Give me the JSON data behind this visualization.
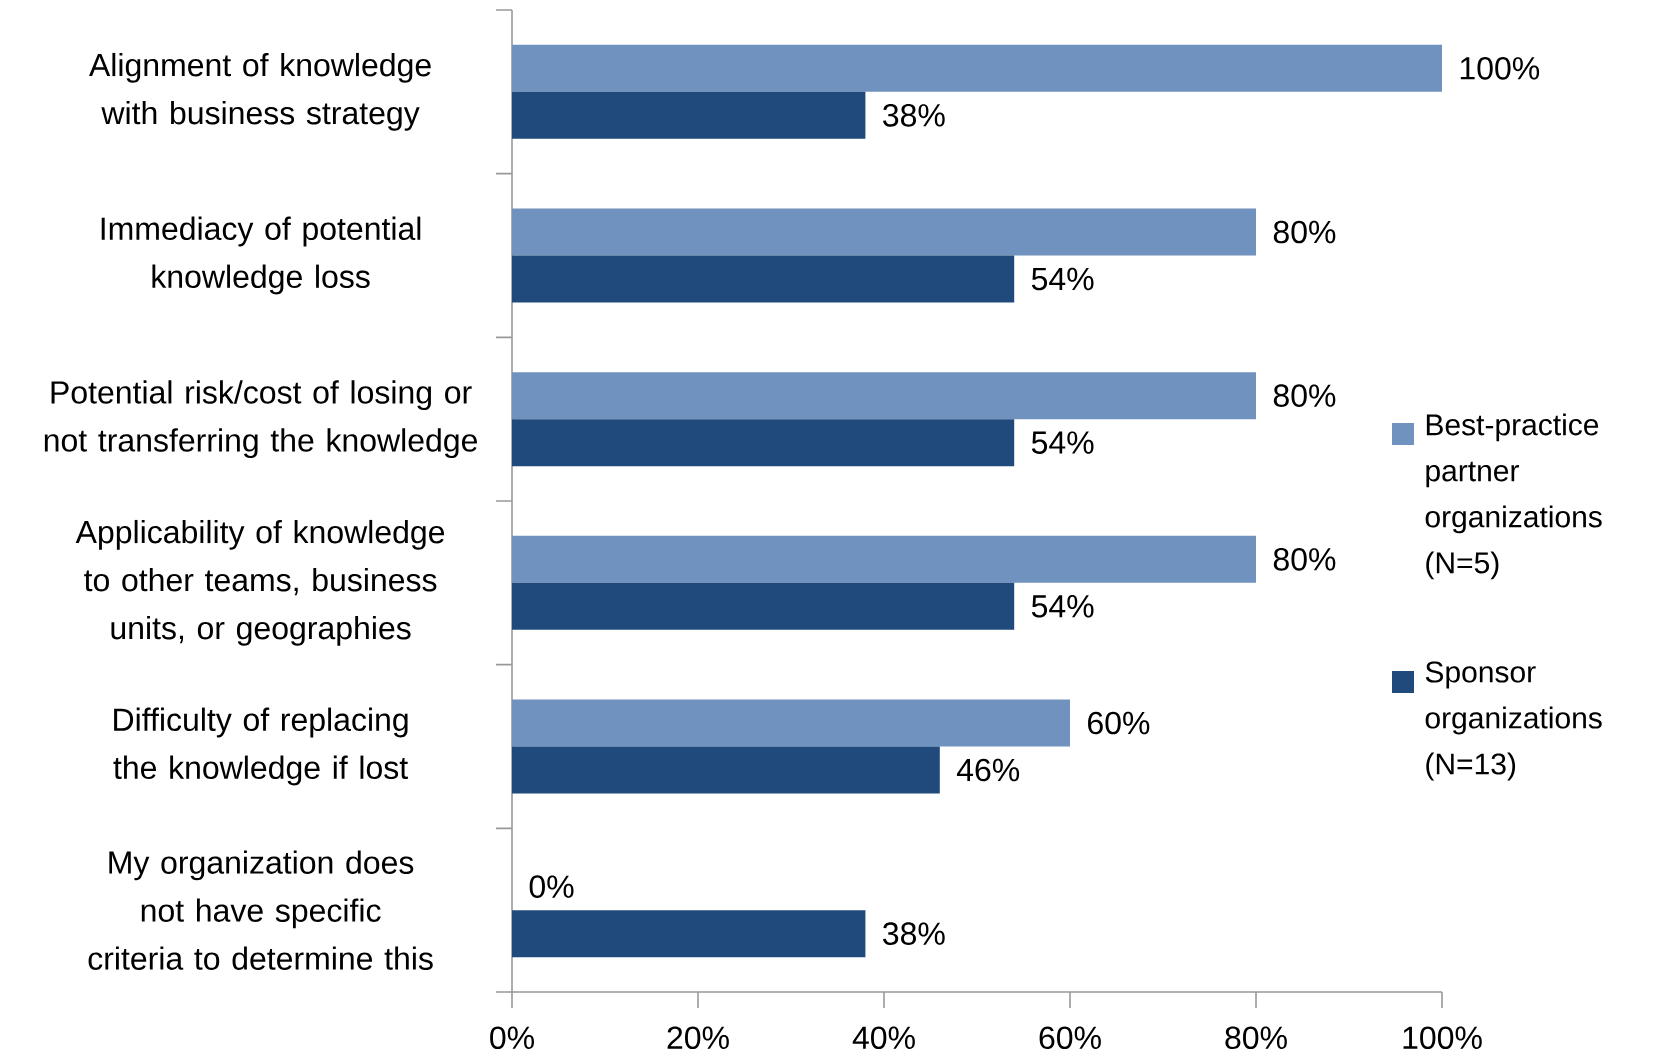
{
  "chart_data": {
    "type": "bar",
    "orientation": "horizontal",
    "categories": [
      "Alignment of knowledge with business strategy",
      "Immediacy of potential knowledge loss",
      "Potential risk/cost of losing or not transferring the knowledge",
      "Applicability of knowledge to other teams, business units, or geographies",
      "Difficulty of replacing the knowledge if lost",
      "My organization does not have specific criteria to determine this"
    ],
    "series": [
      {
        "name": "Best-practice partner organizations (N=5)",
        "color": "#7092be",
        "values": [
          100,
          80,
          80,
          80,
          60,
          0
        ],
        "value_labels": [
          "100%",
          "80%",
          "80%",
          "80%",
          "60%",
          "0%"
        ]
      },
      {
        "name": "Sponsor organizations (N=13)",
        "color": "#214a7c",
        "values": [
          38,
          54,
          54,
          54,
          46,
          38
        ],
        "value_labels": [
          "38%",
          "54%",
          "54%",
          "54%",
          "46%",
          "38%"
        ]
      }
    ],
    "xlim": [
      0,
      100
    ],
    "xticks": [
      {
        "value": 0,
        "label": "0%"
      },
      {
        "value": 20,
        "label": "20%"
      },
      {
        "value": 40,
        "label": "40%"
      },
      {
        "value": 60,
        "label": "60%"
      },
      {
        "value": 80,
        "label": "80%"
      },
      {
        "value": 100,
        "label": "100%"
      }
    ],
    "legend": "right"
  }
}
